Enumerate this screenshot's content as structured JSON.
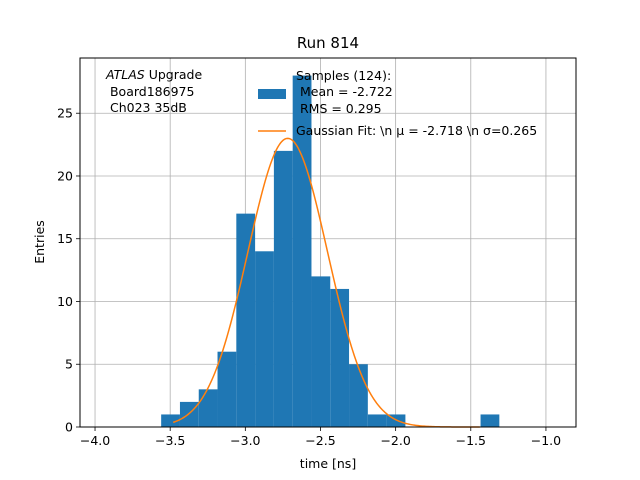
{
  "chart_data": {
    "type": "bar",
    "title": "Run 814",
    "xlabel": "time [ns]",
    "ylabel": "Entries",
    "xlim": [
      -4.1,
      -0.8
    ],
    "ylim": [
      0,
      29.4
    ],
    "xticks": [
      -4.0,
      -3.5,
      -3.0,
      -2.5,
      -2.0,
      -1.5,
      -1.0
    ],
    "xtick_labels": [
      "−4.0",
      "−3.5",
      "−3.0",
      "−2.5",
      "−2.0",
      "−1.5",
      "−1.0"
    ],
    "yticks": [
      0,
      5,
      10,
      15,
      20,
      25
    ],
    "ytick_labels": [
      "0",
      "5",
      "10",
      "15",
      "20",
      "25"
    ],
    "grid": true,
    "annotation": {
      "italic": "ATLAS",
      "rest": " Upgrade",
      "line2": " Board186975",
      "line3": " Ch023 35dB"
    },
    "histogram": {
      "name": "Samples (124):",
      "color": "#1f77b4",
      "bins": [
        {
          "x0": -3.56,
          "x1": -3.435,
          "value": 1
        },
        {
          "x0": -3.435,
          "x1": -3.31,
          "value": 2
        },
        {
          "x0": -3.31,
          "x1": -3.185,
          "value": 3
        },
        {
          "x0": -3.185,
          "x1": -3.06,
          "value": 6
        },
        {
          "x0": -3.06,
          "x1": -2.935,
          "value": 17
        },
        {
          "x0": -2.935,
          "x1": -2.81,
          "value": 14
        },
        {
          "x0": -2.81,
          "x1": -2.685,
          "value": 22
        },
        {
          "x0": -2.685,
          "x1": -2.56,
          "value": 28
        },
        {
          "x0": -2.56,
          "x1": -2.435,
          "value": 12
        },
        {
          "x0": -2.435,
          "x1": -2.31,
          "value": 11
        },
        {
          "x0": -2.31,
          "x1": -2.185,
          "value": 5
        },
        {
          "x0": -2.185,
          "x1": -2.06,
          "value": 1
        },
        {
          "x0": -2.06,
          "x1": -1.935,
          "value": 1
        },
        {
          "x0": -1.435,
          "x1": -1.31,
          "value": 1
        }
      ]
    },
    "fit": {
      "name": "Gaussian Fit: \\n μ = -2.718 \\n σ=0.265",
      "color": "#ff7f0e",
      "mu": -2.718,
      "sigma": 0.265,
      "amplitude": 23,
      "x_range": [
        -3.48,
        -1.44
      ]
    },
    "legend": {
      "position": "top-right",
      "hist_line1": "Samples (124):",
      "hist_line2": " Mean = -2.722",
      "hist_line3": " RMS = 0.295",
      "fit_line": "Gaussian Fit: \\n μ = -2.718 \\n σ=0.265"
    }
  }
}
